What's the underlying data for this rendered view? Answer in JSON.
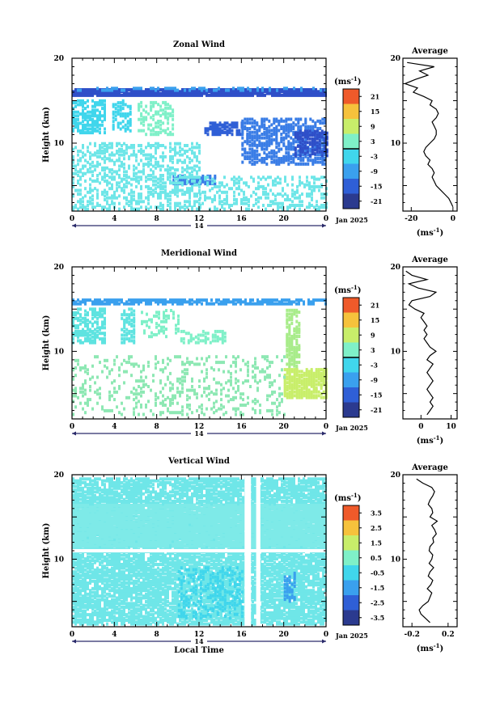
{
  "chart_data": [
    {
      "type": "heatmap",
      "title": "Zonal Wind",
      "ylabel": "Height (km)",
      "xlabel": "",
      "x_ticks": [
        "0",
        "4",
        "8",
        "12",
        "16",
        "20",
        "0"
      ],
      "day_label": "14",
      "date_label": "Jan 2025",
      "y_ticks": [
        "20",
        "10"
      ],
      "ylim": [
        2,
        20
      ],
      "colorbar": {
        "unit": "(ms-1)",
        "ticks": [
          "21",
          "15",
          "9",
          "3",
          "-3",
          "-9",
          "-15",
          "-21"
        ],
        "range": [
          -24,
          24
        ],
        "marked": 0
      },
      "profile": {
        "title": "Average",
        "unit": "(ms-1)",
        "x_ticks": [
          "-20",
          "0"
        ],
        "xlim": [
          -24,
          2
        ],
        "heights": [
          2.5,
          3,
          3.5,
          4,
          4.5,
          5,
          5.5,
          6,
          6.5,
          7,
          7.5,
          8,
          8.5,
          9,
          9.5,
          10,
          10.5,
          11,
          11.5,
          12,
          12.5,
          13,
          13.5,
          14,
          14.5,
          15,
          15.5,
          16,
          16.5,
          17,
          17.5,
          18,
          18.5,
          19,
          19.5
        ],
        "values": [
          0,
          -1,
          -2,
          -4,
          -6,
          -8,
          -9,
          -10,
          -9,
          -10,
          -12,
          -11,
          -13,
          -14,
          -13,
          -11,
          -9,
          -8,
          -8,
          -9,
          -10,
          -8,
          -7,
          -8,
          -11,
          -10,
          -14,
          -19,
          -17,
          -23,
          -18,
          -12,
          -16,
          -9,
          -22
        ]
      }
    },
    {
      "type": "heatmap",
      "title": "Meridional Wind",
      "ylabel": "Height (km)",
      "xlabel": "",
      "x_ticks": [
        "0",
        "4",
        "8",
        "12",
        "16",
        "20",
        "0"
      ],
      "day_label": "14",
      "date_label": "Jan 2025",
      "y_ticks": [
        "20",
        "10"
      ],
      "ylim": [
        2,
        20
      ],
      "colorbar": {
        "unit": "(ms-1)",
        "ticks": [
          "21",
          "15",
          "9",
          "3",
          "-3",
          "-9",
          "-15",
          "-21"
        ],
        "range": [
          -24,
          24
        ],
        "marked": 0
      },
      "profile": {
        "title": "Average",
        "unit": "(ms-1)",
        "x_ticks": [
          "0",
          "10"
        ],
        "xlim": [
          -6,
          12
        ],
        "heights": [
          2.5,
          3,
          3.5,
          4,
          4.5,
          5,
          5.5,
          6,
          6.5,
          7,
          7.5,
          8,
          8.5,
          9,
          9.5,
          10,
          10.5,
          11,
          11.5,
          12,
          12.5,
          13,
          13.5,
          14,
          14.5,
          15,
          15.5,
          16,
          16.5,
          17,
          17.5,
          18,
          18.5,
          19,
          19.5
        ],
        "values": [
          2,
          3,
          4,
          3,
          4,
          3,
          2,
          3,
          4,
          3,
          2,
          3,
          4,
          2,
          3,
          5,
          3,
          2,
          1,
          2,
          1,
          2,
          1,
          0,
          1,
          -2,
          -4,
          -3,
          3,
          5,
          -1,
          -4,
          2,
          -3,
          -5
        ]
      }
    },
    {
      "type": "heatmap",
      "title": "Vertical Wind",
      "ylabel": "Height (km)",
      "xlabel": "Local Time",
      "x_ticks": [
        "0",
        "4",
        "8",
        "12",
        "16",
        "20",
        "0"
      ],
      "day_label": "14",
      "date_label": "Jan 2025",
      "y_ticks": [
        "20",
        "10"
      ],
      "ylim": [
        2,
        20
      ],
      "colorbar": {
        "unit": "(ms-1)",
        "ticks": [
          "3.5",
          "2.5",
          "1.5",
          "0.5",
          "-0.5",
          "-1.5",
          "-2.5",
          "-3.5"
        ],
        "range": [
          -4,
          4
        ],
        "marked": null
      },
      "profile": {
        "title": "Average",
        "unit": "(ms-1)",
        "x_ticks": [
          "-0.2",
          "0.2"
        ],
        "xlim": [
          -0.3,
          0.3
        ],
        "heights": [
          2.5,
          3,
          3.5,
          4,
          4.5,
          5,
          5.5,
          6,
          6.5,
          7,
          7.5,
          8,
          8.5,
          9,
          9.5,
          10,
          10.5,
          11,
          11.5,
          12,
          12.5,
          13,
          13.5,
          14,
          14.5,
          15,
          15.5,
          16,
          16.5,
          17,
          17.5,
          18,
          18.5,
          19,
          19.5
        ],
        "values": [
          0.0,
          -0.05,
          -0.1,
          -0.12,
          -0.08,
          -0.02,
          0.0,
          0.02,
          -0.03,
          0.01,
          0.03,
          -0.02,
          0.0,
          0.04,
          -0.01,
          0.02,
          0.03,
          -0.01,
          0.0,
          0.04,
          0.03,
          0.07,
          0.05,
          0.02,
          0.08,
          0.0,
          0.03,
          0.02,
          -0.02,
          0.0,
          0.03,
          0.05,
          0.02,
          -0.08,
          -0.15
        ]
      }
    }
  ]
}
